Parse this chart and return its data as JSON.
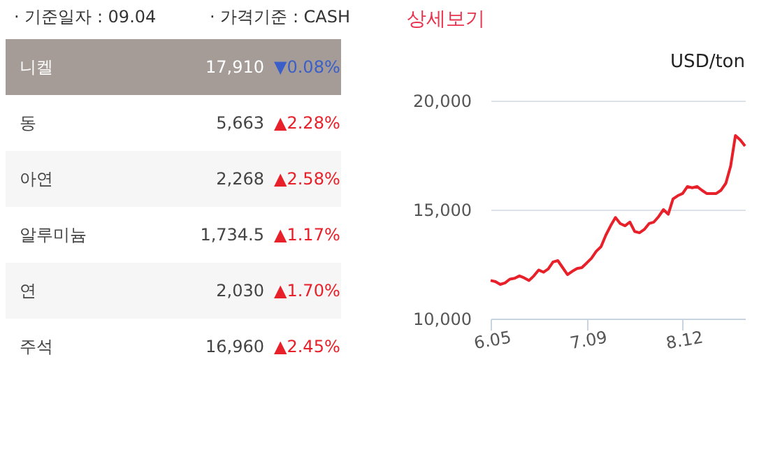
{
  "chart_data": [
    {
      "type": "other",
      "annotations": [
        "· 기준일자 : 09.04",
        "· 가격기준 : CASH",
        "니켈",
        "17,910",
        "▼0.08%",
        "동",
        "5,663",
        "▲2.28%",
        "아연",
        "2,268",
        "▲2.58%",
        "알루미늄",
        "1,734.5",
        "▲1.17%",
        "연",
        "2,030",
        "▲1.70%",
        "주석",
        "16,960",
        "▲2.45%"
      ],
      "colors": [
        "#3a5fc8",
        "#e8202a",
        "#e8202a",
        "#e8202a",
        "#e8202a",
        "#e8202a"
      ]
    },
    {
      "type": "line",
      "annotations": [
        "상세보기"
      ],
      "ylabel": "USD/ton",
      "categories": [
        "6.05",
        null,
        null,
        null,
        null,
        null,
        null,
        null,
        null,
        null,
        null,
        null,
        null,
        null,
        null,
        null,
        null,
        null,
        null,
        null,
        "7.09",
        null,
        null,
        null,
        null,
        null,
        null,
        null,
        null,
        null,
        null,
        null,
        null,
        null,
        null,
        null,
        null,
        null,
        null,
        null,
        "8.12",
        null,
        null,
        null,
        null,
        null,
        null,
        null,
        null,
        null,
        null,
        null,
        null,
        null
      ],
      "series": [
        {
          "color": "#e8202a",
          "values": [
            11750,
            11700,
            11570,
            11640,
            11810,
            11850,
            11960,
            11870,
            11750,
            11960,
            12230,
            12130,
            12280,
            12600,
            12660,
            12340,
            12020,
            12170,
            12300,
            12340,
            12550,
            12770,
            13090,
            13300,
            13830,
            14260,
            14640,
            14360,
            14260,
            14430,
            14000,
            13940,
            14090,
            14360,
            14430,
            14680,
            15000,
            14790,
            15490,
            15640,
            15740,
            16060,
            16000,
            16060,
            15890,
            15740,
            15740,
            15740,
            15890,
            16210,
            17000,
            18400,
            18200,
            17920
          ]
        }
      ],
      "ylim": [
        10000,
        20000
      ],
      "yticks": [
        {
          "value": 10000,
          "label": "10,000"
        },
        {
          "value": 15000,
          "label": "15,000"
        },
        {
          "value": 20000,
          "label": "20,000"
        }
      ],
      "grid": "y",
      "marker": "none",
      "line_style": "solid"
    }
  ]
}
